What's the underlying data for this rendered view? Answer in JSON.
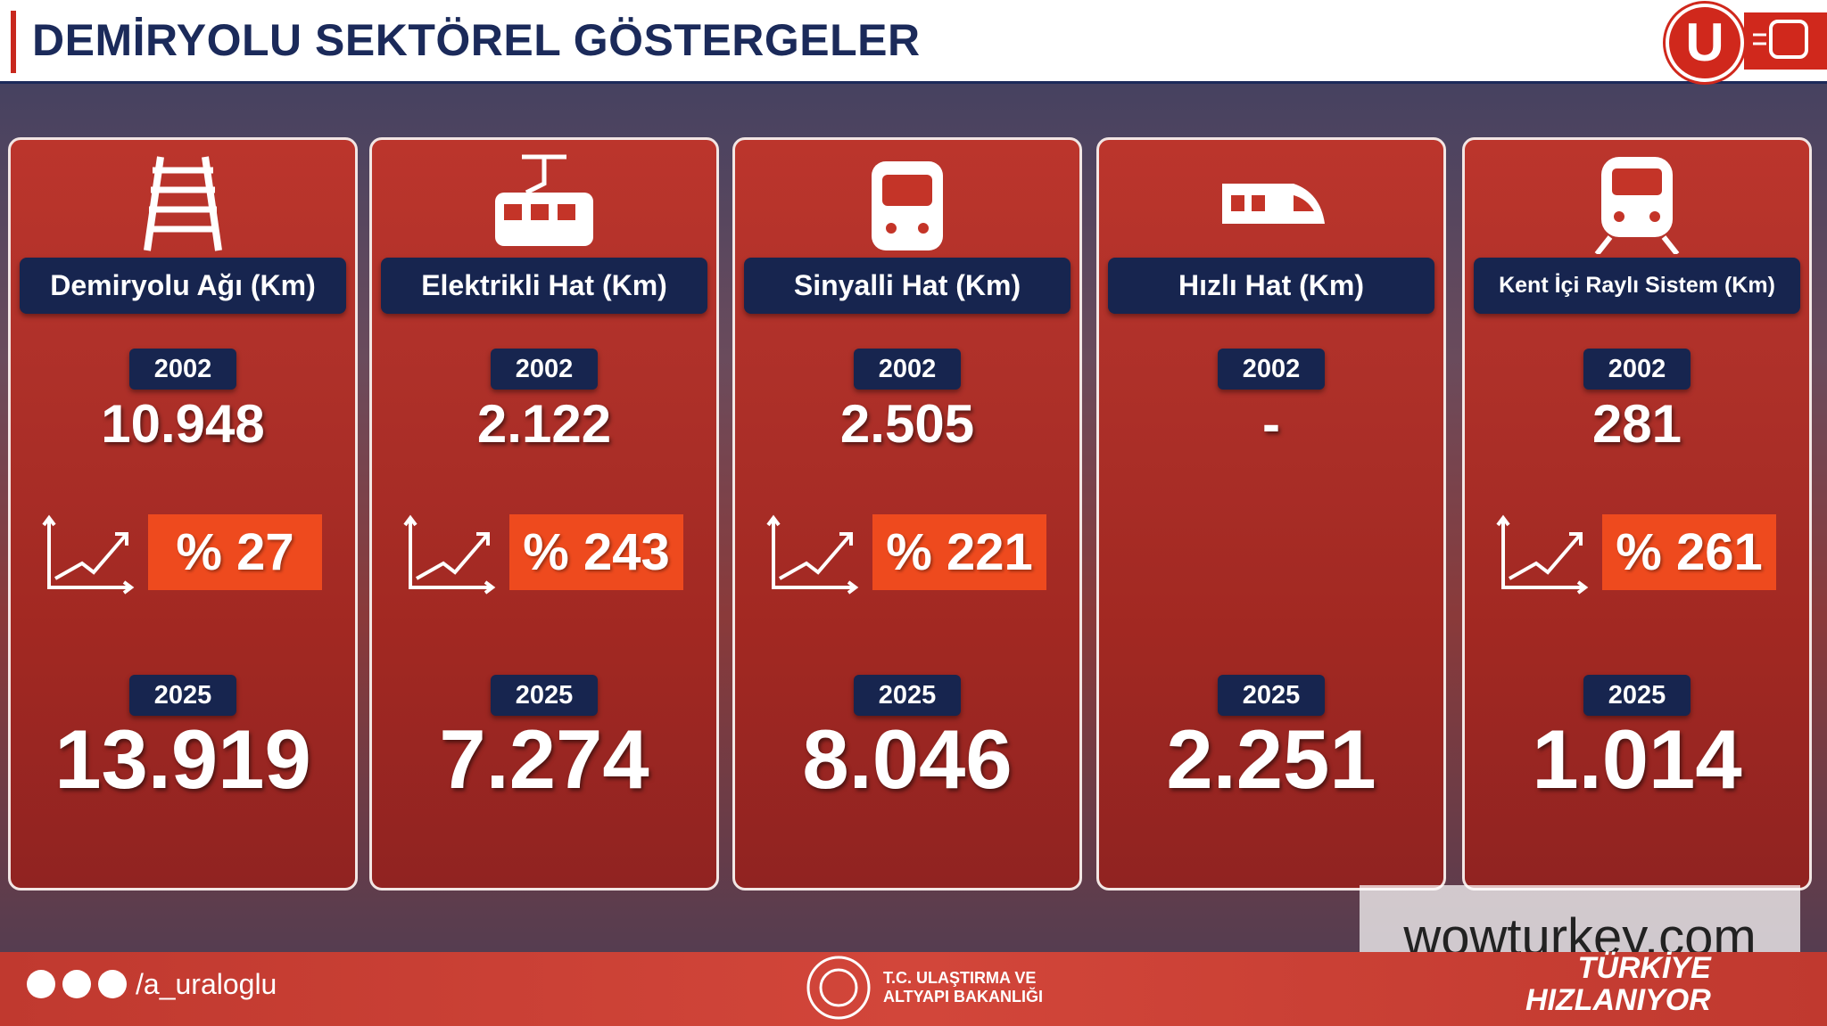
{
  "header": {
    "title": "DEMİRYOLU SEKTÖREL GÖSTERGELER",
    "logo": "U"
  },
  "cards": [
    {
      "title": "Demiryolu Ağı (Km)",
      "year_start": "2002",
      "value_start": "10.948",
      "change": "% 27",
      "year_end": "2025",
      "value_end": "13.919"
    },
    {
      "title": "Elektrikli Hat (Km)",
      "year_start": "2002",
      "value_start": "2.122",
      "change": "% 243",
      "year_end": "2025",
      "value_end": "7.274"
    },
    {
      "title": "Sinyalli Hat (Km)",
      "year_start": "2002",
      "value_start": "2.505",
      "change": "% 221",
      "year_end": "2025",
      "value_end": "8.046"
    },
    {
      "title": "Hızlı Hat (Km)",
      "year_start": "2002",
      "value_start": "-",
      "year_end": "2025",
      "value_end": "2.251"
    },
    {
      "title": "Kent İçi Raylı Sistem (Km)",
      "year_start": "2002",
      "value_start": "281",
      "change": "% 261",
      "year_end": "2025",
      "value_end": "1.014"
    }
  ],
  "footer": {
    "handle": "/a_uraloglu",
    "ministry": [
      "T.C. ULAŞTIRMA VE",
      "ALTYAPI BAKANLIĞI"
    ],
    "slogan": [
      "TÜRKİYE",
      "HIZLANIYOR"
    ]
  },
  "watermark": "wowturkey.com"
}
